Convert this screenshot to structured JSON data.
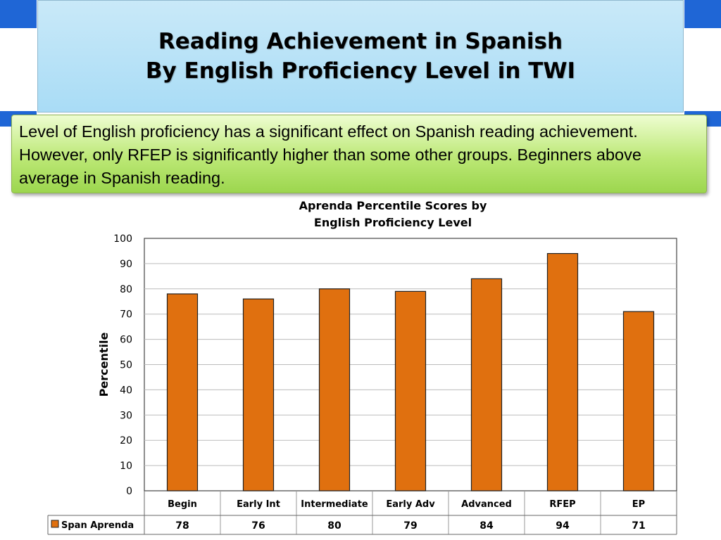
{
  "slide": {
    "title_line1": "Reading Achievement in Spanish",
    "title_line2": "By English Proficiency Level in TWI",
    "note": "Level of English proficiency has a significant effect on Spanish reading achievement. However, only RFEP is significantly higher than some other groups. Beginners above average in Spanish reading.",
    "colors": {
      "band": "#1f66d6",
      "title_box": "#b8e2f7",
      "note_box": "#b5e46b"
    }
  },
  "chart_data": {
    "type": "bar",
    "title_lines": [
      "Aprenda Percentile Scores by",
      "English Proficiency Level"
    ],
    "ylabel": "Percentile",
    "xlabel": "",
    "categories": [
      "Begin",
      "Early Int",
      "Intermediate",
      "Early Adv",
      "Advanced",
      "RFEP",
      "EP"
    ],
    "series": [
      {
        "name": "Span Aprenda",
        "values": [
          78,
          76,
          80,
          79,
          84,
          94,
          71
        ],
        "color": "#e0700f"
      }
    ],
    "ylim": [
      0,
      100
    ],
    "yticks": [
      0,
      10,
      20,
      30,
      40,
      50,
      60,
      70,
      80,
      90,
      100
    ],
    "grid": true,
    "data_table": true
  }
}
